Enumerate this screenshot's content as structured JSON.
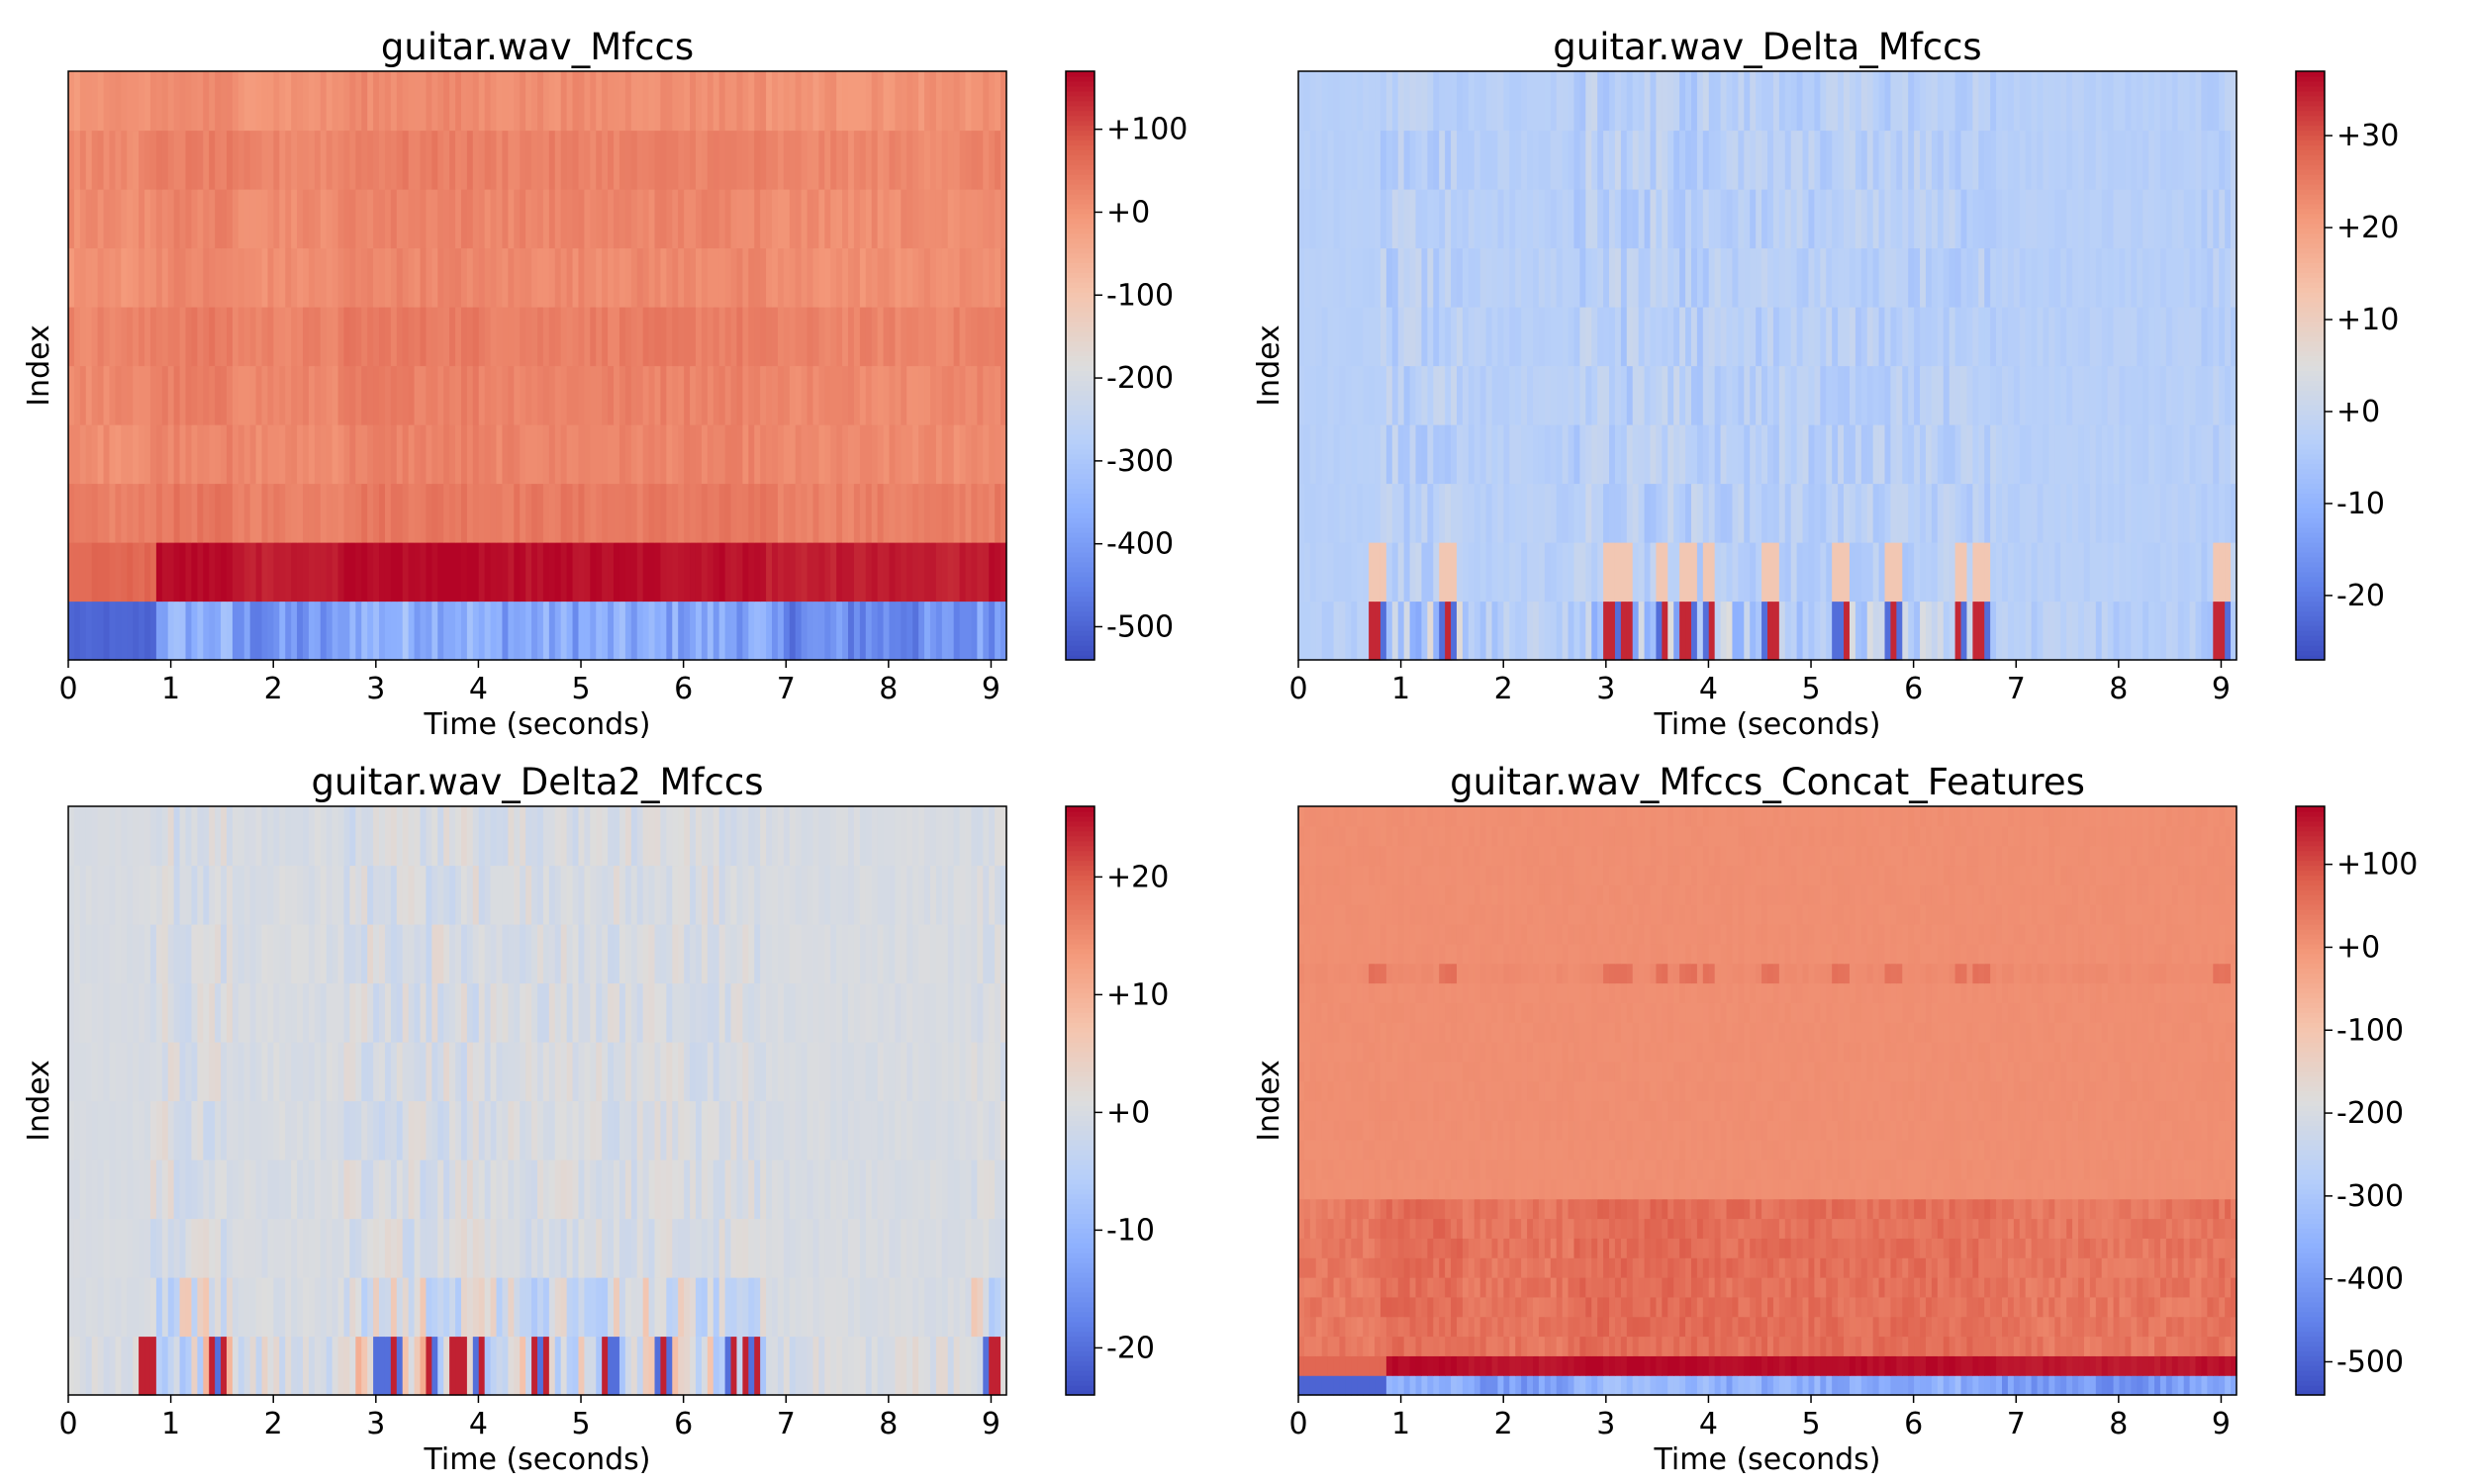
{
  "chart_data": [
    {
      "type": "heatmap",
      "title": "guitar.wav_Mfccs",
      "xlabel": "Time (seconds)",
      "ylabel": "Index",
      "xlim": [
        0,
        9.15
      ],
      "x_ticks": [
        "0",
        "1",
        "2",
        "3",
        "4",
        "5",
        "6",
        "7",
        "8",
        "9"
      ],
      "rows": 10,
      "colorbar": {
        "min": -540,
        "max": 170,
        "ticks": [
          "+100",
          "+0",
          "-100",
          "-200",
          "-300",
          "-400",
          "-500"
        ],
        "tick_values": [
          100,
          0,
          -100,
          -200,
          -300,
          -400,
          -500
        ]
      },
      "row_means": [
        -470,
        150,
        40,
        30,
        20,
        10,
        5,
        0,
        10,
        20
      ],
      "events": [
        {
          "time": 0.82,
          "note": "onset"
        }
      ]
    },
    {
      "type": "heatmap",
      "title": "guitar.wav_Delta_Mfccs",
      "xlabel": "Time (seconds)",
      "ylabel": "Index",
      "xlim": [
        0,
        9.15
      ],
      "x_ticks": [
        "0",
        "1",
        "2",
        "3",
        "4",
        "5",
        "6",
        "7",
        "8",
        "9"
      ],
      "rows": 10,
      "colorbar": {
        "min": -27,
        "max": 37,
        "ticks": [
          "+30",
          "+20",
          "+10",
          "+0",
          "-10",
          "-20"
        ],
        "tick_values": [
          30,
          20,
          10,
          0,
          -10,
          -20
        ]
      },
      "row_means": [
        -3,
        -3,
        -4,
        -4,
        -4,
        -4,
        -4,
        -4,
        -4,
        -4
      ]
    },
    {
      "type": "heatmap",
      "title": "guitar.wav_Delta2_Mfccs",
      "xlabel": "Time (seconds)",
      "ylabel": "Index",
      "xlim": [
        0,
        9.15
      ],
      "x_ticks": [
        "0",
        "1",
        "2",
        "3",
        "4",
        "5",
        "6",
        "7",
        "8",
        "9"
      ],
      "rows": 10,
      "colorbar": {
        "min": -24,
        "max": 26,
        "ticks": [
          "+20",
          "+10",
          "+0",
          "-10",
          "-20"
        ],
        "tick_values": [
          20,
          10,
          0,
          -10,
          -20
        ]
      },
      "row_means": [
        0,
        0,
        0,
        0,
        0,
        0,
        0,
        0,
        0,
        0
      ]
    },
    {
      "type": "heatmap",
      "title": "guitar.wav_Mfccs_Concat_Features",
      "xlabel": "Time (seconds)",
      "ylabel": "Index",
      "xlim": [
        0,
        9.15
      ],
      "x_ticks": [
        "0",
        "1",
        "2",
        "3",
        "4",
        "5",
        "6",
        "7",
        "8",
        "9"
      ],
      "rows": 30,
      "colorbar": {
        "min": -540,
        "max": 170,
        "ticks": [
          "+100",
          "+0",
          "-100",
          "-200",
          "-300",
          "-400",
          "-500"
        ],
        "tick_values": [
          100,
          0,
          -100,
          -200,
          -300,
          -400,
          -500
        ]
      }
    }
  ]
}
